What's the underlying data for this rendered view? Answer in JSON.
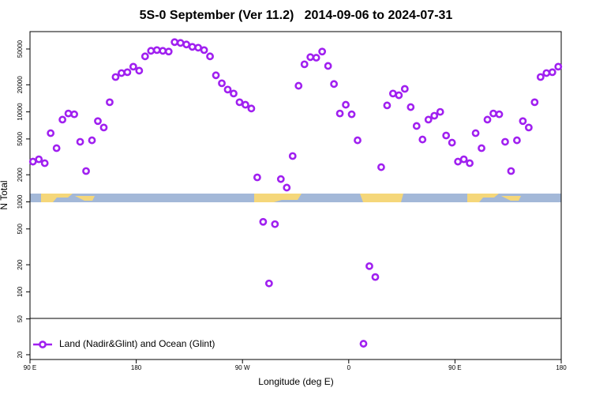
{
  "chart_data": {
    "type": "scatter",
    "log_y": true,
    "title": "5S-0 September (Ver 11.2)   2014-09-06 to 2024-07-31",
    "xlabel": "Longitude (deg E)",
    "ylabel": "N Total",
    "xlim": [
      90,
      540
    ],
    "ylim": [
      17.7,
      78000
    ],
    "xticks": [
      {
        "value": 90,
        "label": "90 E"
      },
      {
        "value": 180,
        "label": "180"
      },
      {
        "value": 270,
        "label": "90 W"
      },
      {
        "value": 360,
        "label": "0"
      },
      {
        "value": 450,
        "label": "90 E"
      },
      {
        "value": 540,
        "label": "180"
      }
    ],
    "yticks": [
      20,
      50,
      100,
      200,
      500,
      1000,
      2000,
      5000,
      10000,
      20000,
      50000
    ],
    "legend": "bottom-left",
    "series": [
      {
        "name": "Land (Nadir&Glint) and Ocean (Glint)",
        "color": "#a020f0",
        "x": [
          92.5,
          97.5,
          102.5,
          107.5,
          112.5,
          117.5,
          122.5,
          127.5,
          132.5,
          137.5,
          142.5,
          147.5,
          152.5,
          157.5,
          162.5,
          167.5,
          172.5,
          177.5,
          182.5,
          187.5,
          192.5,
          197.5,
          202.5,
          207.5,
          212.5,
          217.5,
          222.5,
          227.5,
          232.5,
          237.5,
          242.5,
          247.5,
          252.5,
          257.5,
          262.5,
          267.5,
          272.5,
          277.5,
          282.5,
          287.5,
          292.5,
          297.5,
          302.5,
          307.5,
          312.5,
          317.5,
          322.5,
          327.5,
          332.5,
          337.5,
          342.5,
          347.5,
          352.5,
          357.5,
          362.5,
          367.5,
          372.5,
          377.5,
          382.5,
          387.5,
          392.5,
          397.5,
          402.5,
          407.5,
          412.5,
          417.5,
          422.5,
          427.5,
          432.5,
          437.5,
          442.5,
          447.5,
          452.5,
          457.5,
          462.5,
          467.5,
          472.5,
          477.5,
          482.5,
          487.5,
          492.5,
          497.5,
          502.5,
          507.5,
          512.5,
          517.5,
          522.5,
          527.5,
          532.5,
          537.5
        ],
        "values": [
          2800,
          2970,
          2690,
          5800,
          3950,
          8200,
          9600,
          9400,
          4650,
          2200,
          4830,
          7900,
          6700,
          12800,
          24400,
          27000,
          27600,
          31800,
          28700,
          41400,
          47700,
          48600,
          47700,
          46800,
          59600,
          58400,
          56100,
          52800,
          51700,
          48600,
          41400,
          25500,
          20800,
          17700,
          16000,
          12800,
          12000,
          10900,
          1870,
          600,
          124,
          565,
          1790,
          1440,
          3230,
          19500,
          33800,
          40600,
          40000,
          46800,
          32400,
          20400,
          9600,
          12000,
          9400,
          4830,
          26.5,
          193,
          146,
          2430,
          11800,
          16000,
          15300,
          18000,
          11300,
          6970,
          4930,
          8200,
          9060,
          10000,
          5460,
          4550,
          2800,
          2970,
          2690,
          5800,
          3950,
          8200,
          9600,
          9400,
          4650,
          2200,
          4830,
          7900,
          6700,
          12800,
          24400,
          27000,
          27600,
          31800
        ]
      }
    ]
  }
}
